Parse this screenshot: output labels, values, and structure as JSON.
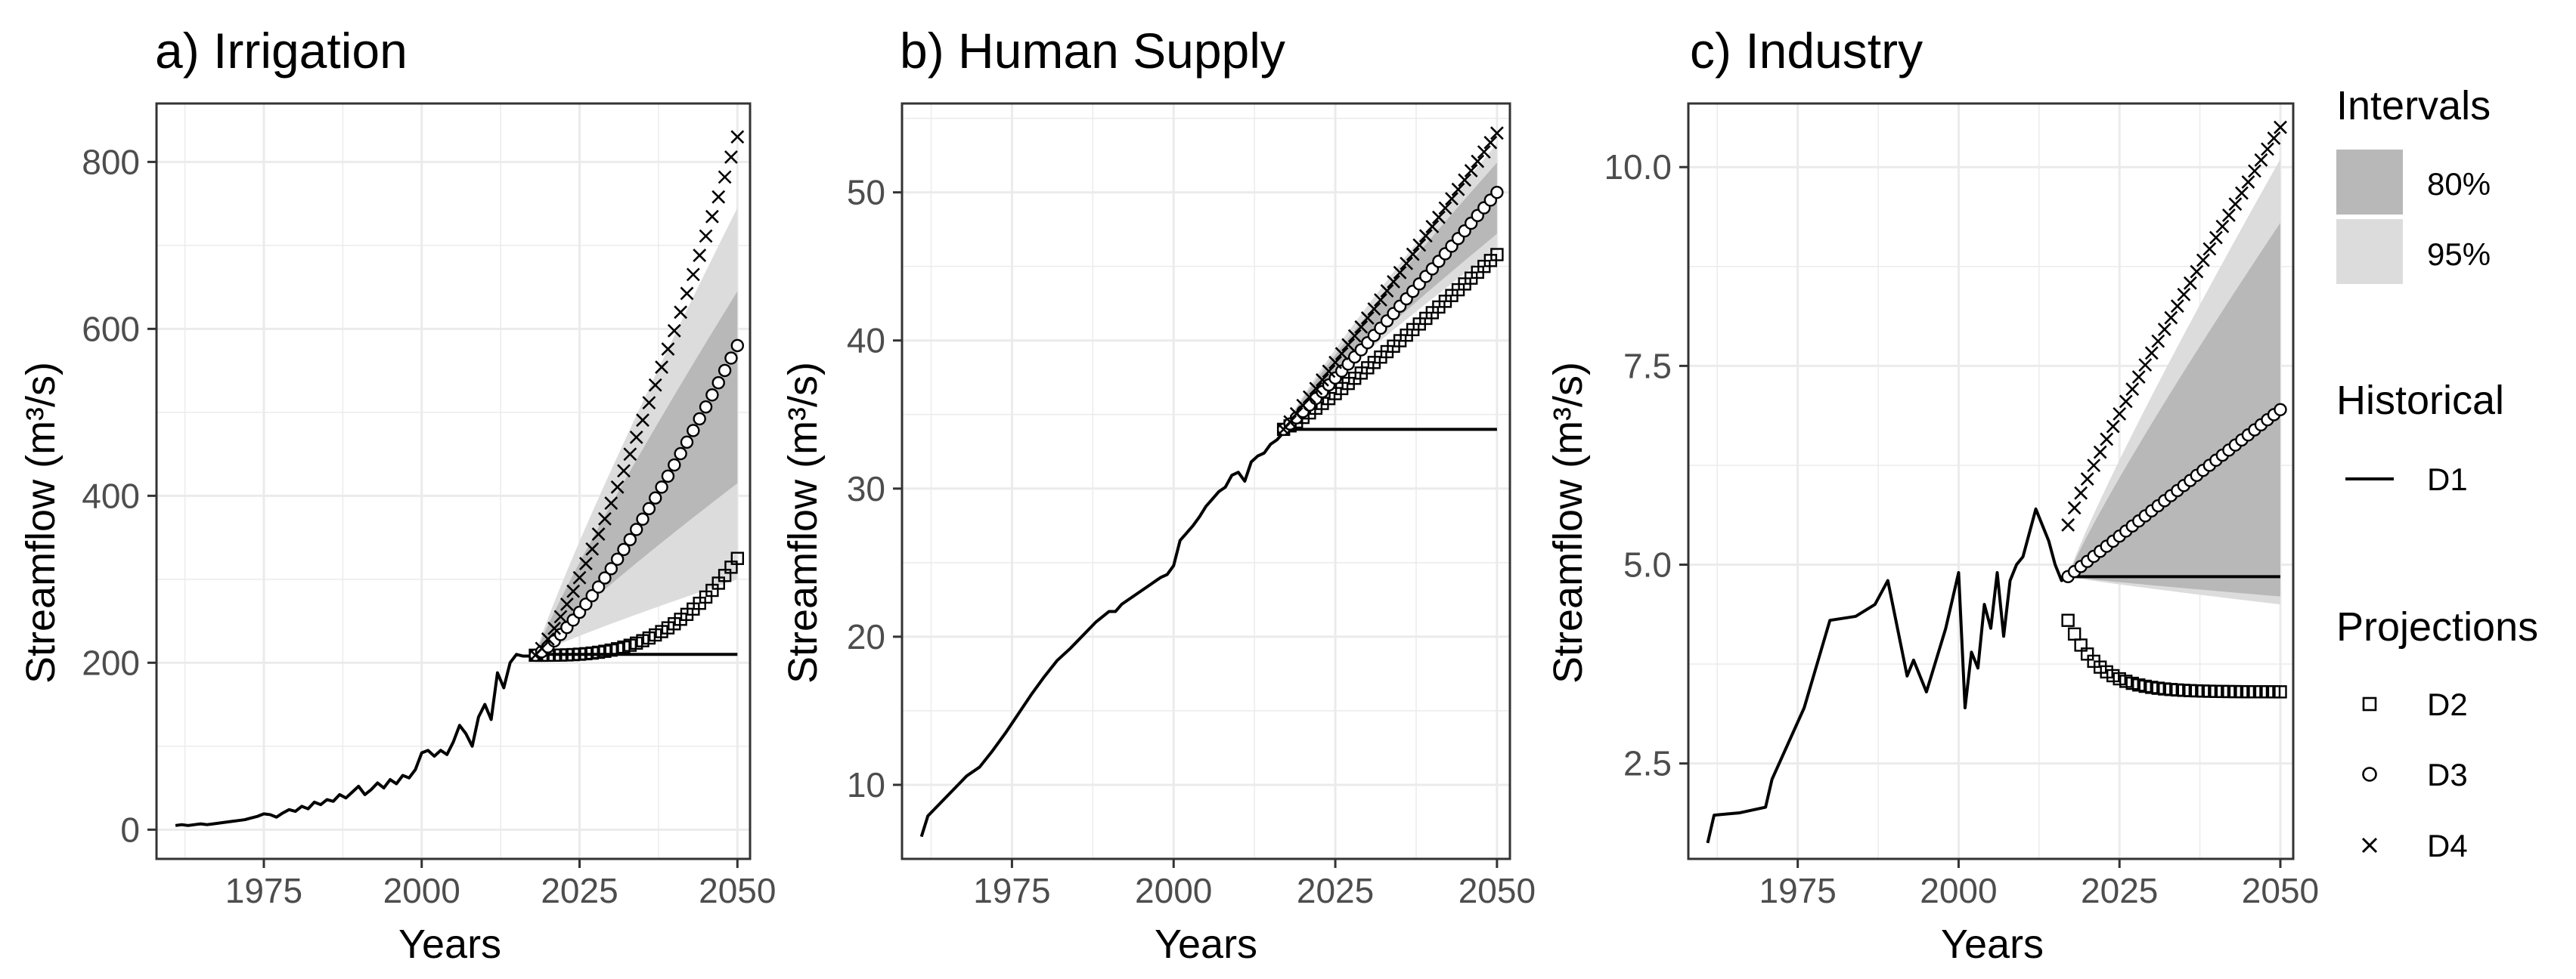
{
  "chart_data": [
    {
      "type": "line",
      "panel": "a",
      "title": "a) Irrigation",
      "xlabel": "Years",
      "ylabel": "Streamflow (m³/s)",
      "xlim": [
        1958,
        2052
      ],
      "ylim": [
        -35,
        870
      ],
      "xticks": [
        1975,
        2000,
        2025,
        2050
      ],
      "yticks": [
        0,
        200,
        400,
        600,
        800
      ],
      "ytick_labels": [
        "0",
        "200",
        "400",
        "600",
        "800"
      ],
      "historical": {
        "name": "D1",
        "x": [
          1961,
          1962,
          1963,
          1964,
          1965,
          1966,
          1967,
          1968,
          1969,
          1970,
          1971,
          1972,
          1973,
          1974,
          1975,
          1976,
          1977,
          1978,
          1979,
          1980,
          1981,
          1982,
          1983,
          1984,
          1985,
          1986,
          1987,
          1988,
          1989,
          1990,
          1991,
          1992,
          1993,
          1994,
          1995,
          1996,
          1997,
          1998,
          1999,
          2000,
          2001,
          2002,
          2003,
          2004,
          2005,
          2006,
          2007,
          2008,
          2009,
          2010,
          2011,
          2012,
          2013,
          2014,
          2015,
          2016,
          2017,
          2018
        ],
        "y": [
          5,
          6,
          5,
          6,
          7,
          6,
          7,
          8,
          9,
          10,
          11,
          12,
          14,
          16,
          19,
          18,
          15,
          20,
          24,
          22,
          28,
          25,
          33,
          30,
          36,
          34,
          42,
          38,
          45,
          52,
          42,
          48,
          56,
          50,
          60,
          55,
          65,
          62,
          72,
          92,
          95,
          88,
          95,
          90,
          105,
          125,
          115,
          100,
          135,
          150,
          132,
          188,
          170,
          200,
          210,
          208,
          208,
          209
        ]
      },
      "projection_start": 2018,
      "projection_end": 2050,
      "projections": [
        {
          "name": "D1",
          "end_value": 210,
          "growth": 0
        },
        {
          "name": "D2",
          "end_value": 325,
          "growth": 3
        },
        {
          "name": "D3",
          "end_value": 580,
          "growth": 1.3
        },
        {
          "name": "D4",
          "end_value": 830,
          "growth": 1.25
        }
      ],
      "band95_end": [
        300,
        745
      ],
      "band80_end": [
        415,
        645
      ]
    },
    {
      "type": "line",
      "panel": "b",
      "title": "b) Human Supply",
      "xlabel": "Years",
      "ylabel": "Streamflow (m³/s)",
      "xlim": [
        1958,
        2052
      ],
      "ylim": [
        5,
        56
      ],
      "xticks": [
        1975,
        2000,
        2025,
        2050
      ],
      "yticks": [
        10,
        20,
        30,
        40,
        50
      ],
      "ytick_labels": [
        "10",
        "20",
        "30",
        "40",
        "50"
      ],
      "historical": {
        "name": "D1",
        "x": [
          1961,
          1962,
          1964,
          1966,
          1968,
          1970,
          1972,
          1974,
          1976,
          1978,
          1980,
          1982,
          1984,
          1986,
          1988,
          1990,
          1991,
          1992,
          1994,
          1996,
          1998,
          1999,
          2000,
          2001,
          2002,
          2003,
          2004,
          2005,
          2006,
          2007,
          2008,
          2009,
          2010,
          2011,
          2012,
          2013,
          2014,
          2015,
          2016,
          2017,
          2018
        ],
        "y": [
          6.5,
          7.9,
          8.8,
          9.7,
          10.6,
          11.2,
          12.3,
          13.5,
          14.8,
          16.1,
          17.3,
          18.4,
          19.2,
          20.1,
          21.0,
          21.7,
          21.7,
          22.2,
          22.8,
          23.4,
          24.0,
          24.2,
          24.8,
          26.5,
          27.0,
          27.5,
          28.1,
          28.8,
          29.3,
          29.8,
          30.1,
          30.9,
          31.1,
          30.5,
          31.8,
          32.2,
          32.4,
          33.0,
          33.3,
          33.8,
          34.0
        ]
      },
      "projection_start": 2017,
      "projection_end": 2050,
      "projections": [
        {
          "name": "D1",
          "end_value": 34,
          "growth": 0
        },
        {
          "name": "D2",
          "end_value": 45.8,
          "growth": 1.12
        },
        {
          "name": "D3",
          "end_value": 50,
          "growth": 1.08
        },
        {
          "name": "D4",
          "end_value": 54,
          "growth": 1.05
        }
      ],
      "band95_end": [
        46.2,
        53.3
      ],
      "band80_end": [
        47.2,
        52.0
      ]
    },
    {
      "type": "line",
      "panel": "c",
      "title": "c) Industry",
      "xlabel": "Years",
      "ylabel": "Streamflow (m³/s)",
      "xlim": [
        1958,
        2052
      ],
      "ylim": [
        1.3,
        10.8
      ],
      "xticks": [
        1975,
        2000,
        2025,
        2050
      ],
      "yticks": [
        2.5,
        5.0,
        7.5,
        10.0
      ],
      "ytick_labels": [
        "2.5",
        "5.0",
        "7.5",
        "10.0"
      ],
      "historical": {
        "name": "D1",
        "x": [
          1961,
          1962,
          1966,
          1970,
          1971,
          1976,
          1980,
          1984,
          1987,
          1989,
          1992,
          1993,
          1995,
          1998,
          2000,
          2001,
          2002,
          2003,
          2004,
          2005,
          2006,
          2007,
          2008,
          2009,
          2010,
          2012,
          2014,
          2015,
          2016,
          2017
        ],
        "y": [
          1.5,
          1.85,
          1.88,
          1.95,
          2.3,
          3.2,
          4.3,
          4.35,
          4.5,
          4.8,
          3.6,
          3.8,
          3.4,
          4.2,
          4.9,
          3.2,
          3.9,
          3.7,
          4.5,
          4.2,
          4.9,
          4.1,
          4.8,
          5.0,
          5.1,
          5.7,
          5.3,
          5.0,
          4.8,
          4.85
        ]
      },
      "projection_start": 2017,
      "projection_end": 2050,
      "projections": [
        {
          "name": "D1",
          "end_value": 4.85,
          "growth": 0
        },
        {
          "name": "D2",
          "end_value": 3.4,
          "start_value": 4.3,
          "decay": true
        },
        {
          "name": "D3",
          "end_value": 6.95,
          "growth": 1.0
        },
        {
          "name": "D4",
          "end_value": 10.5,
          "start_value": 5.5,
          "growth": 0.9
        }
      ],
      "band95_end": [
        4.5,
        10.1
      ],
      "band80_end": [
        4.6,
        9.3
      ]
    }
  ],
  "legend": {
    "intervals_title": "Intervals",
    "intervals": [
      {
        "label": "80%",
        "color": "#b8b8b8"
      },
      {
        "label": "95%",
        "color": "#dcdcdc"
      }
    ],
    "historical_title": "Historical",
    "historical": [
      {
        "label": "D1"
      }
    ],
    "projections_title": "Projections",
    "projections": [
      {
        "label": "D2",
        "symbol": "square"
      },
      {
        "label": "D3",
        "symbol": "circle"
      },
      {
        "label": "D4",
        "symbol": "cross"
      }
    ]
  },
  "colors": {
    "band80": "#b8b8b8",
    "band95": "#dcdcdc",
    "line": "#000000",
    "grid": "#ebebeb",
    "panel_border": "#333333"
  }
}
